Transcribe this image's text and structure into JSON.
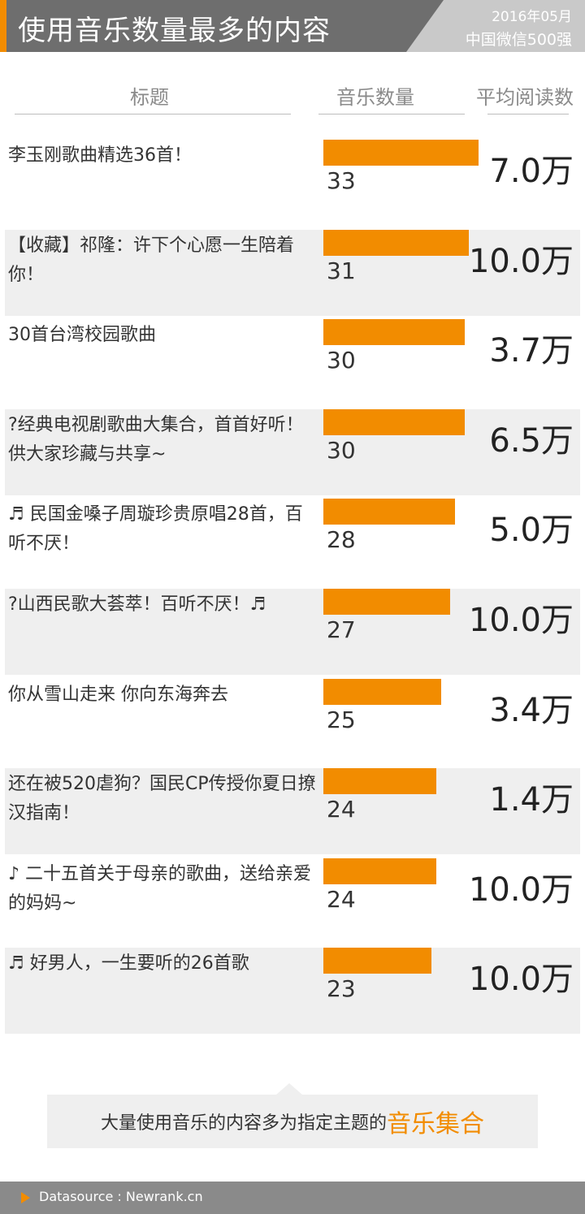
{
  "header": {
    "title": "使用音乐数量最多的内容",
    "date": "2016年05月",
    "subtitle": "中国微信500强"
  },
  "columns": {
    "title": "标题",
    "music_count": "音乐数量",
    "avg_reads": "平均阅读数"
  },
  "chart_data": {
    "type": "bar",
    "orientation": "horizontal",
    "categories": [
      "李玉刚歌曲精选36首！",
      "【收藏】祁隆：许下个心愿一生陪着你！",
      "30首台湾校园歌曲",
      "?经典电视剧歌曲大集合，首首好听！供大家珍藏与共享~",
      "♬ 民国金嗓子周璇珍贵原唱28首，百听不厌！",
      "?山西民歌大荟萃！百听不厌！♬",
      "你从雪山走来 你向东海奔去",
      "还在被520虐狗？国民CP传授你夏日撩汉指南！",
      "♪ 二十五首关于母亲的歌曲，送给亲爱的妈妈~",
      "♬ 好男人，一生要听的26首歌"
    ],
    "values": [
      33,
      31,
      30,
      30,
      28,
      27,
      25,
      24,
      24,
      23
    ],
    "avg_reads": [
      "7.0万",
      "10.0万",
      "3.7万",
      "6.5万",
      "5.0万",
      "10.0万",
      "3.4万",
      "1.4万",
      "10.0万",
      "10.0万"
    ],
    "xlim": [
      0,
      33
    ]
  },
  "callout": {
    "text": "大量使用音乐的内容多为指定主题的",
    "highlight": "音乐集合"
  },
  "footer": {
    "source": "Datasource : Newrank.cn"
  },
  "colors": {
    "accent": "#f28c00",
    "header": "#6e6e6e"
  }
}
